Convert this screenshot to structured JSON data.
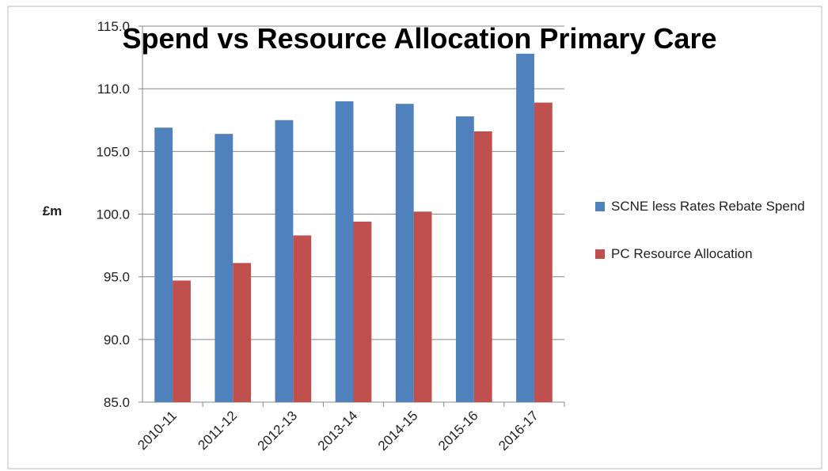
{
  "chart_data": {
    "type": "bar",
    "title": "Spend vs Resource Allocation Primary Care",
    "y_label": "£m",
    "categories": [
      "2010-11",
      "2011-12",
      "2012-13",
      "2013-14",
      "2014-15",
      "2015-16",
      "2016-17"
    ],
    "series": [
      {
        "name": "SCNE less Rates Rebate Spend",
        "color": "#4f81bd",
        "values": [
          106.9,
          106.4,
          107.5,
          109.0,
          108.8,
          107.8,
          112.8
        ]
      },
      {
        "name": "PC Resource Allocation",
        "color": "#c0504d",
        "values": [
          94.7,
          96.1,
          98.3,
          99.4,
          100.2,
          106.6,
          108.9
        ]
      }
    ],
    "ylim": [
      85,
      115
    ],
    "yticks": [
      {
        "value": 85,
        "label": "85.0"
      },
      {
        "value": 90,
        "label": "90.0"
      },
      {
        "value": 95,
        "label": "95.0"
      },
      {
        "value": 100,
        "label": "100.0"
      },
      {
        "value": 105,
        "label": "105.0"
      },
      {
        "value": 110,
        "label": "110.0"
      },
      {
        "value": 115,
        "label": "115.0"
      }
    ],
    "grid": true,
    "legend": "right"
  }
}
